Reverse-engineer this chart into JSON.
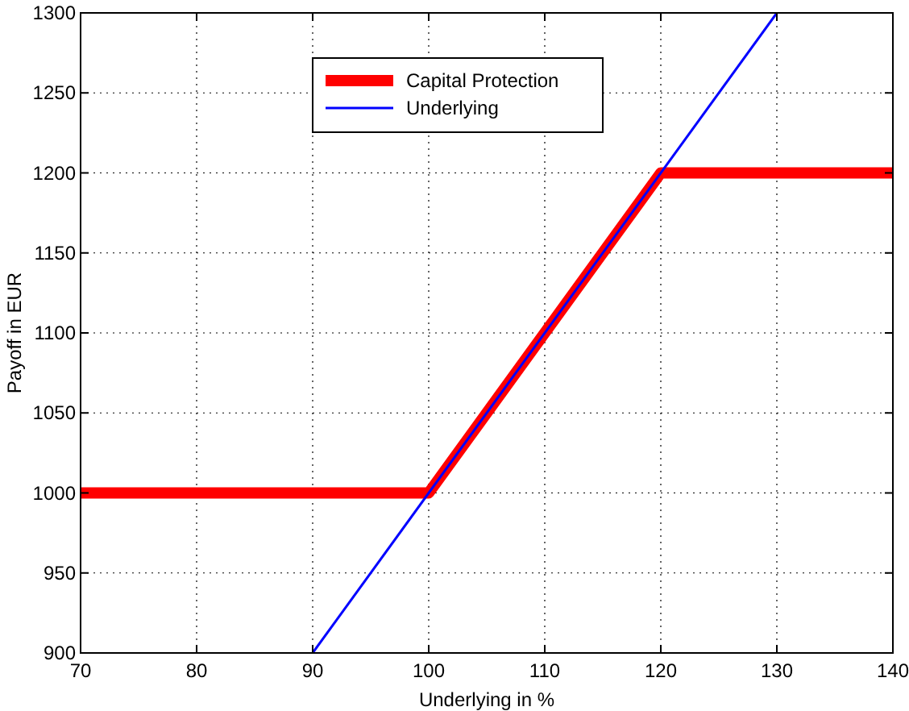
{
  "chart_data": {
    "type": "line",
    "xlabel": "Underlying in %",
    "ylabel": "Payoff in EUR",
    "xlim": [
      70,
      140
    ],
    "xticks": [
      70,
      80,
      90,
      100,
      110,
      120,
      130,
      140
    ],
    "ylim": [
      900,
      1300
    ],
    "yticks": [
      900,
      950,
      1000,
      1050,
      1100,
      1150,
      1200,
      1250,
      1300
    ],
    "grid": true,
    "legend": "top",
    "marker": "none",
    "line_style": "solid",
    "series": [
      {
        "name": "Capital Protection",
        "color": "#ff0000",
        "x": [
          70,
          100,
          120,
          140
        ],
        "values": [
          1000,
          1000,
          1200,
          1200
        ]
      },
      {
        "name": "Underlying",
        "color": "#0000ff",
        "x": [
          90,
          130
        ],
        "values": [
          900,
          1300
        ]
      }
    ]
  }
}
